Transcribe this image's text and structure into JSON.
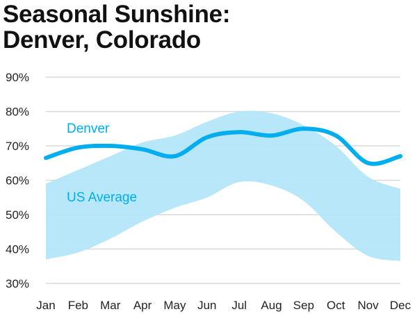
{
  "chart_data": {
    "type": "area",
    "title_lines": [
      "Seasonal Sunshine:",
      "Denver, Colorado"
    ],
    "categories": [
      "Jan",
      "Feb",
      "Mar",
      "Apr",
      "May",
      "Jun",
      "Jul",
      "Aug",
      "Sep",
      "Oct",
      "Nov",
      "Dec"
    ],
    "y_ticks": [
      "30%",
      "40%",
      "50%",
      "60%",
      "70%",
      "80%",
      "90%"
    ],
    "ylim": [
      30,
      90
    ],
    "grid": true,
    "series": [
      {
        "name": "Denver",
        "type": "line",
        "color": "#00aeef",
        "values": [
          66.5,
          69.5,
          70,
          69,
          67,
          72.5,
          74,
          73,
          75,
          73,
          65,
          67
        ]
      },
      {
        "name": "US Average",
        "type": "band",
        "color": "#b3e6f8",
        "upper": [
          59,
          63,
          67,
          71,
          73,
          77,
          80,
          79.5,
          76,
          70,
          61,
          57.5
        ],
        "lower": [
          37,
          39,
          43,
          48,
          52,
          55,
          59.5,
          58.5,
          54,
          45,
          38,
          36.5
        ]
      }
    ],
    "annotations": [
      "Denver",
      "US Average"
    ]
  }
}
